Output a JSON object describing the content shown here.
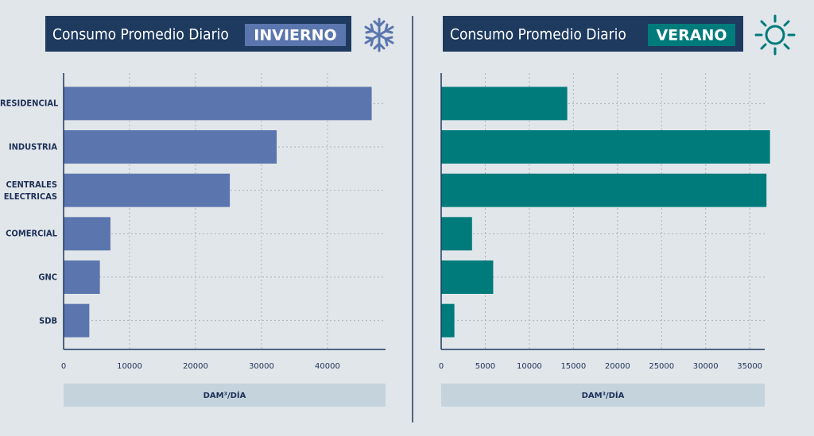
{
  "chart_data": [
    {
      "type": "hbar",
      "title": "Consumo Promedio Diario",
      "season": "INVIERNO",
      "categories": [
        "RESIDENCIAL",
        "INDUSTRIA",
        "CENTRALES ELECTRICAS",
        "COMERCIAL",
        "GNC",
        "SDB"
      ],
      "values": [
        46700,
        32300,
        25200,
        7100,
        5500,
        3900
      ],
      "color": "#5b76ae",
      "xlabel": "DAM³/DÍA",
      "xlim": [
        0,
        48800
      ],
      "xticks": [
        0,
        10000,
        20000,
        30000,
        40000
      ],
      "grid": true
    },
    {
      "type": "hbar",
      "title": "Consumo Promedio Diario",
      "season": "VERANO",
      "values": [
        14300,
        37300,
        36900,
        3500,
        5900,
        1500
      ],
      "color": "#007b7b",
      "xlabel": "DAM³/DÍA",
      "xlim": [
        0,
        36700
      ],
      "xticks": [
        0,
        5000,
        10000,
        15000,
        20000,
        25000,
        30000,
        35000
      ],
      "grid": true
    }
  ]
}
